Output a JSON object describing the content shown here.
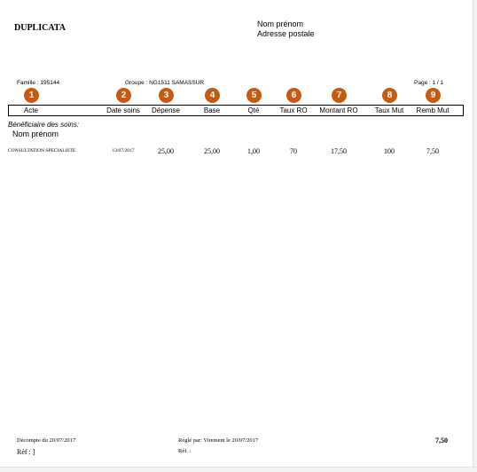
{
  "document": {
    "title": "DUPLICATA",
    "recipient": {
      "name": "Nom prénom",
      "address": "Adresse postale"
    },
    "famille": "Famille : 195144",
    "groupe": "Groupe : NG1511  SAMASSUR",
    "page": "Page : 1 / 1",
    "columns": [
      {
        "num": "1",
        "label": "Acte"
      },
      {
        "num": "2",
        "label": "Date soins"
      },
      {
        "num": "3",
        "label": "Dépense"
      },
      {
        "num": "4",
        "label": "Base"
      },
      {
        "num": "5",
        "label": "Qté"
      },
      {
        "num": "6",
        "label": "Taux RO"
      },
      {
        "num": "7",
        "label": "Montant RO"
      },
      {
        "num": "8",
        "label": "Taux Mut"
      },
      {
        "num": "9",
        "label": "Remb Mut"
      }
    ],
    "beneficiaire_label": "Bénéficiaire des soins:",
    "beneficiaire_nom": "Nom prénom",
    "rows": [
      [
        "CONSULTATION SPECIALISTE",
        "13/07/2017",
        "25,00",
        "25,00",
        "1,00",
        "70",
        "17,50",
        "100",
        "7,50"
      ]
    ],
    "badge_color": "#c55a11"
  },
  "footer": {
    "decompte": "Décompte du  20/07/2017",
    "ref1": "Réf : ]",
    "regle": "Réglé par:  Virement  le 20/07/2017",
    "ref2": "Réf. :",
    "total": "7,50"
  }
}
